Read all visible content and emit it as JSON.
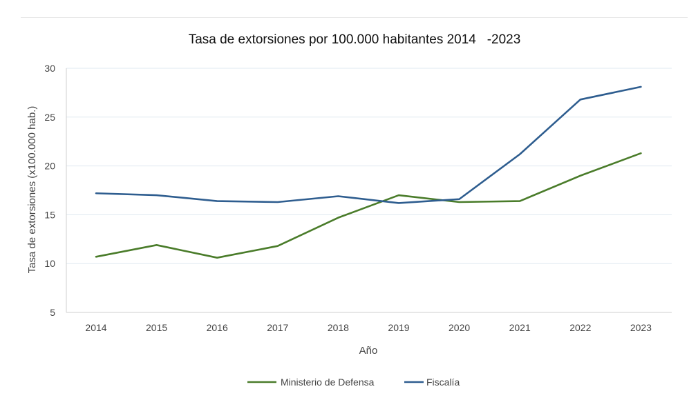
{
  "chart_data": {
    "type": "line",
    "title": "Tasa de extorsiones por 100.000 habitantes 2014   -2023",
    "xlabel": "Año",
    "ylabel": "Tasa de extorsiones (x100.000 hab.)",
    "categories": [
      "2014",
      "2015",
      "2016",
      "2017",
      "2018",
      "2019",
      "2020",
      "2021",
      "2022",
      "2023"
    ],
    "ylim": [
      5,
      30
    ],
    "yticks": [
      5,
      10,
      15,
      20,
      25,
      30
    ],
    "grid": true,
    "legend_position": "bottom",
    "series": [
      {
        "name": "Ministerio de Defensa",
        "color": "#4a7c2a",
        "values": [
          10.7,
          11.9,
          10.6,
          11.8,
          14.7,
          17.0,
          16.3,
          16.4,
          19.0,
          21.3
        ]
      },
      {
        "name": "Fiscalía",
        "color": "#2e5d8f",
        "values": [
          17.2,
          17.0,
          16.4,
          16.3,
          16.9,
          16.2,
          16.6,
          21.2,
          26.8,
          28.1
        ]
      }
    ]
  }
}
